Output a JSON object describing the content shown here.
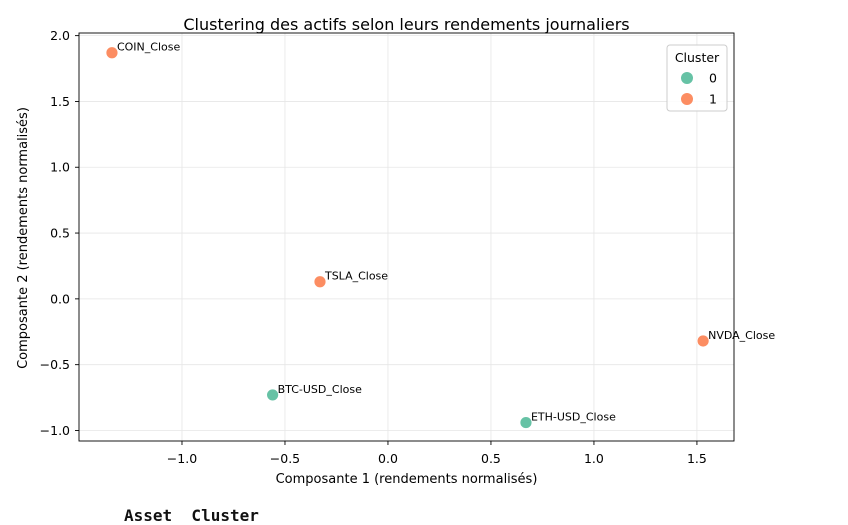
{
  "chart_data": {
    "type": "scatter",
    "title": "Clustering des actifs selon leurs rendements journaliers",
    "xlabel": "Composante 1 (rendements normalisés)",
    "ylabel": "Composante 2 (rendements normalisés)",
    "xlim": [
      -1.5,
      1.68
    ],
    "ylim": [
      -1.08,
      2.02
    ],
    "xticks": [
      -1.0,
      -0.5,
      0.0,
      0.5,
      1.0,
      1.5
    ],
    "xtick_labels": [
      "−1.0",
      "−0.5",
      "0.0",
      "0.5",
      "1.0",
      "1.5"
    ],
    "yticks": [
      -1.0,
      -0.5,
      0.0,
      0.5,
      1.0,
      1.5,
      2.0
    ],
    "ytick_labels": [
      "−1.0",
      "−0.5",
      "0.0",
      "0.5",
      "1.0",
      "1.5",
      "2.0"
    ],
    "grid": true,
    "legend": {
      "title": "Cluster",
      "placement": "top-right",
      "entries": [
        {
          "label": "0",
          "color": "#66c2a5"
        },
        {
          "label": "1",
          "color": "#fc8d62"
        }
      ]
    },
    "points": [
      {
        "label": "COIN_Close",
        "x": -1.34,
        "y": 1.87,
        "cluster": 1
      },
      {
        "label": "TSLA_Close",
        "x": -0.33,
        "y": 0.13,
        "cluster": 1
      },
      {
        "label": "NVDA_Close",
        "x": 1.53,
        "y": -0.32,
        "cluster": 1
      },
      {
        "label": "BTC-USD_Close",
        "x": -0.56,
        "y": -0.73,
        "cluster": 0
      },
      {
        "label": "ETH-USD_Close",
        "x": 0.67,
        "y": -0.94,
        "cluster": 0
      }
    ]
  },
  "footer": {
    "text": "Asset  Cluster"
  }
}
